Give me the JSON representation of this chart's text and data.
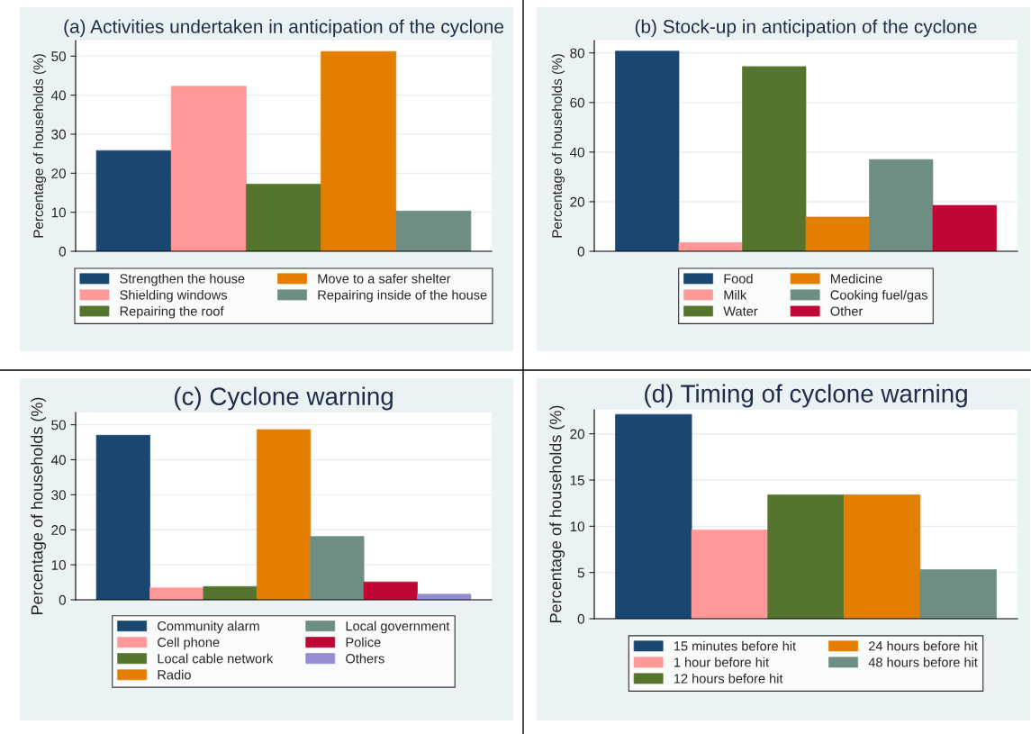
{
  "chart_data": [
    {
      "type": "bar",
      "title": "(a) Activities undertaken in anticipation of the cyclone",
      "ylabel": "Percentage of households (%)",
      "categories": [
        null
      ],
      "ylim": [
        0,
        54
      ],
      "yticks": [
        0,
        10,
        20,
        30,
        40,
        50
      ],
      "grid": "y",
      "legend": "bottom",
      "tick_labels": "y",
      "series": [
        {
          "name": "Strengthen the house",
          "color": "#1a476f",
          "values": [
            25.8
          ]
        },
        {
          "name": "Shielding windows",
          "color": "#ff9896",
          "values": [
            42.3
          ]
        },
        {
          "name": "Repairing the roof",
          "color": "#55752f",
          "values": [
            17.2
          ]
        },
        {
          "name": "Move to a safer shelter",
          "color": "#e37e00",
          "values": [
            51.2
          ]
        },
        {
          "name": "Repairing inside of the house",
          "color": "#6e8e84",
          "values": [
            10.3
          ]
        }
      ]
    },
    {
      "type": "bar",
      "title": "(b) Stock-up in anticipation of the cyclone",
      "ylabel": "Percentage of households (%)",
      "categories": [
        null
      ],
      "ylim": [
        0,
        85
      ],
      "yticks": [
        0,
        20,
        40,
        60,
        80
      ],
      "grid": "y",
      "legend": "bottom",
      "tick_labels": "y",
      "series": [
        {
          "name": "Food",
          "color": "#1a476f",
          "values": [
            80.7
          ]
        },
        {
          "name": "Milk",
          "color": "#ff9896",
          "values": [
            3.5
          ]
        },
        {
          "name": "Water",
          "color": "#55752f",
          "values": [
            74.5
          ]
        },
        {
          "name": "Medicine",
          "color": "#e37e00",
          "values": [
            13.8
          ]
        },
        {
          "name": "Cooking fuel/gas",
          "color": "#6e8e84",
          "values": [
            37
          ]
        },
        {
          "name": "Other",
          "color": "#c10534",
          "values": [
            18.5
          ]
        }
      ]
    },
    {
      "type": "bar",
      "title": "(c) Cyclone warning",
      "ylabel": "Percentage of households (%)",
      "categories": [
        null
      ],
      "ylim": [
        0,
        53.5
      ],
      "yticks": [
        0,
        10,
        20,
        30,
        40,
        50
      ],
      "grid": "y",
      "legend": "bottom",
      "tick_labels": "y",
      "series": [
        {
          "name": "Community alarm",
          "color": "#1a476f",
          "values": [
            47
          ]
        },
        {
          "name": "Cell phone",
          "color": "#ff9896",
          "values": [
            3.4
          ]
        },
        {
          "name": "Local cable network",
          "color": "#55752f",
          "values": [
            3.8
          ]
        },
        {
          "name": "Radio",
          "color": "#e37e00",
          "values": [
            48.6
          ]
        },
        {
          "name": "Local government",
          "color": "#6e8e84",
          "values": [
            18.1
          ]
        },
        {
          "name": "Police",
          "color": "#c10534",
          "values": [
            5.1
          ]
        },
        {
          "name": "Others",
          "color": "#938dd2",
          "values": [
            1.6
          ]
        }
      ]
    },
    {
      "type": "bar",
      "title": "(d) Timing of cyclone warning",
      "ylabel": "Percentage of households (%)",
      "categories": [
        null
      ],
      "ylim": [
        0,
        22.6
      ],
      "yticks": [
        0,
        5,
        10,
        15,
        20
      ],
      "grid": "y",
      "legend": "bottom",
      "tick_labels": "y",
      "series": [
        {
          "name": "15 minutes before hit",
          "color": "#1a476f",
          "values": [
            22.1
          ]
        },
        {
          "name": "1 hour before hit",
          "color": "#ff9896",
          "values": [
            9.6
          ]
        },
        {
          "name": "12 hours before hit",
          "color": "#55752f",
          "values": [
            13.4
          ]
        },
        {
          "name": "24 hours before hit",
          "color": "#e37e00",
          "values": [
            13.4
          ]
        },
        {
          "name": "48 hours before hit",
          "color": "#6e8e84",
          "values": [
            5.3
          ]
        }
      ]
    }
  ]
}
